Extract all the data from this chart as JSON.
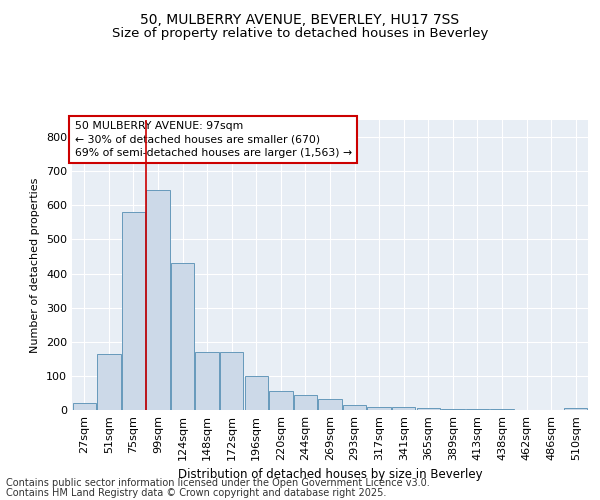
{
  "title1": "50, MULBERRY AVENUE, BEVERLEY, HU17 7SS",
  "title2": "Size of property relative to detached houses in Beverley",
  "xlabel": "Distribution of detached houses by size in Beverley",
  "ylabel": "Number of detached properties",
  "categories": [
    "27sqm",
    "51sqm",
    "75sqm",
    "99sqm",
    "124sqm",
    "148sqm",
    "172sqm",
    "196sqm",
    "220sqm",
    "244sqm",
    "269sqm",
    "293sqm",
    "317sqm",
    "341sqm",
    "365sqm",
    "389sqm",
    "413sqm",
    "438sqm",
    "462sqm",
    "486sqm",
    "510sqm"
  ],
  "values": [
    20,
    165,
    580,
    645,
    430,
    170,
    170,
    100,
    55,
    45,
    33,
    15,
    10,
    8,
    5,
    4,
    3,
    2,
    1,
    1,
    5
  ],
  "bar_color": "#ccd9e8",
  "bar_edge_color": "#6699bb",
  "vline_color": "#cc0000",
  "vline_index": 3,
  "annotation_line1": "50 MULBERRY AVENUE: 97sqm",
  "annotation_line2": "← 30% of detached houses are smaller (670)",
  "annotation_line3": "69% of semi-detached houses are larger (1,563) →",
  "annotation_box_facecolor": "#ffffff",
  "annotation_box_edgecolor": "#cc0000",
  "ylim": [
    0,
    850
  ],
  "yticks": [
    0,
    100,
    200,
    300,
    400,
    500,
    600,
    700,
    800
  ],
  "plot_bg_color": "#e8eef5",
  "grid_color": "#ffffff",
  "title1_fontsize": 10,
  "title2_fontsize": 9.5,
  "ylabel_fontsize": 8,
  "xlabel_fontsize": 8.5,
  "tick_fontsize": 8,
  "ann_fontsize": 7.8,
  "footer_fontsize": 7,
  "footer1": "Contains HM Land Registry data © Crown copyright and database right 2025.",
  "footer2": "Contains public sector information licensed under the Open Government Licence v3.0."
}
